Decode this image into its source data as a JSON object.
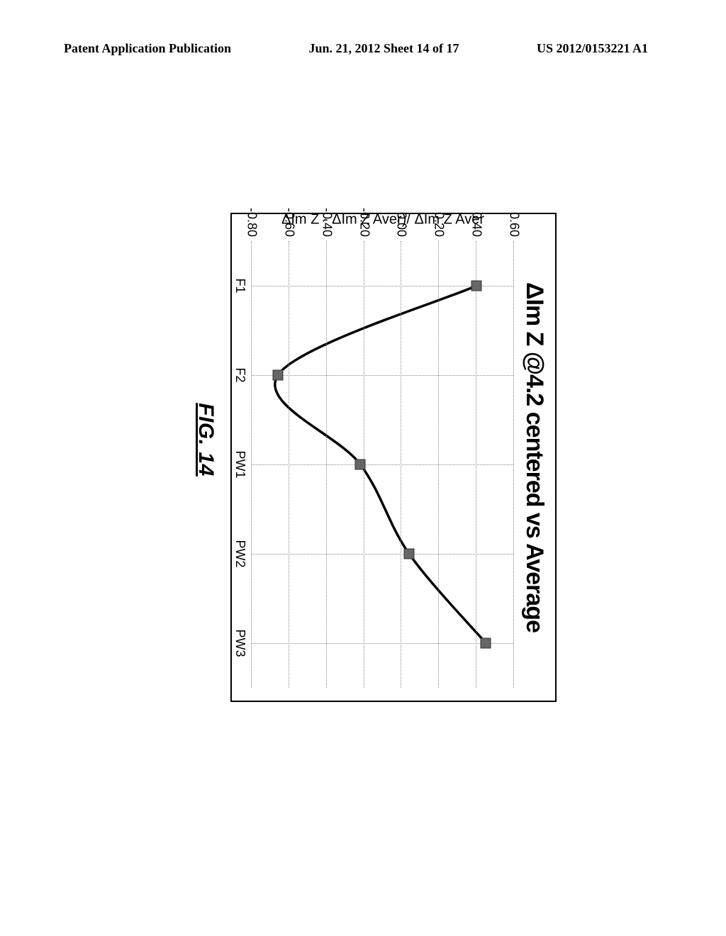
{
  "header": {
    "left": "Patent Application Publication",
    "center": "Jun. 21, 2012  Sheet 14 of 17",
    "right": "US 2012/0153221 A1"
  },
  "figure": {
    "caption": "FIG. 14",
    "chart": {
      "type": "line",
      "title": "ΔIm Z @4.2 centered vs Average",
      "y_axis_label": "ΔIm Z - ΔIm Z Aver)/ ΔIm Z Aver",
      "background_color": "#ffffff",
      "border_color": "#000000",
      "grid_color": "#888888",
      "title_fontsize": 34,
      "axis_label_fontsize": 20,
      "tick_fontsize": 18,
      "line_color": "#000000",
      "line_width": 3.5,
      "marker_style": "square",
      "marker_size": 15,
      "marker_color": "#666666",
      "xlim": [
        0.5,
        5.5
      ],
      "ylim": [
        -0.8,
        0.6
      ],
      "ytick_step": 0.2,
      "y_ticks": [
        {
          "v": 0.6,
          "label": "0.60"
        },
        {
          "v": 0.4,
          "label": "0.40"
        },
        {
          "v": 0.2,
          "label": "0.20"
        },
        {
          "v": 0.0,
          "label": "0.00"
        },
        {
          "v": -0.2,
          "label": "-0.20"
        },
        {
          "v": -0.4,
          "label": "-0.40"
        },
        {
          "v": -0.6,
          "label": "-0.60"
        },
        {
          "v": -0.8,
          "label": "-0.80"
        }
      ],
      "x_ticks": [
        {
          "v": 1,
          "label": "F1"
        },
        {
          "v": 2,
          "label": "F2"
        },
        {
          "v": 3,
          "label": "PW1"
        },
        {
          "v": 4,
          "label": "PW2"
        },
        {
          "v": 5,
          "label": "PW3"
        }
      ],
      "points": [
        {
          "x": 1.0,
          "y": 0.4
        },
        {
          "x": 2.0,
          "y": -0.66
        },
        {
          "x": 3.0,
          "y": -0.22
        },
        {
          "x": 4.0,
          "y": 0.04
        },
        {
          "x": 5.0,
          "y": 0.45
        }
      ]
    }
  }
}
